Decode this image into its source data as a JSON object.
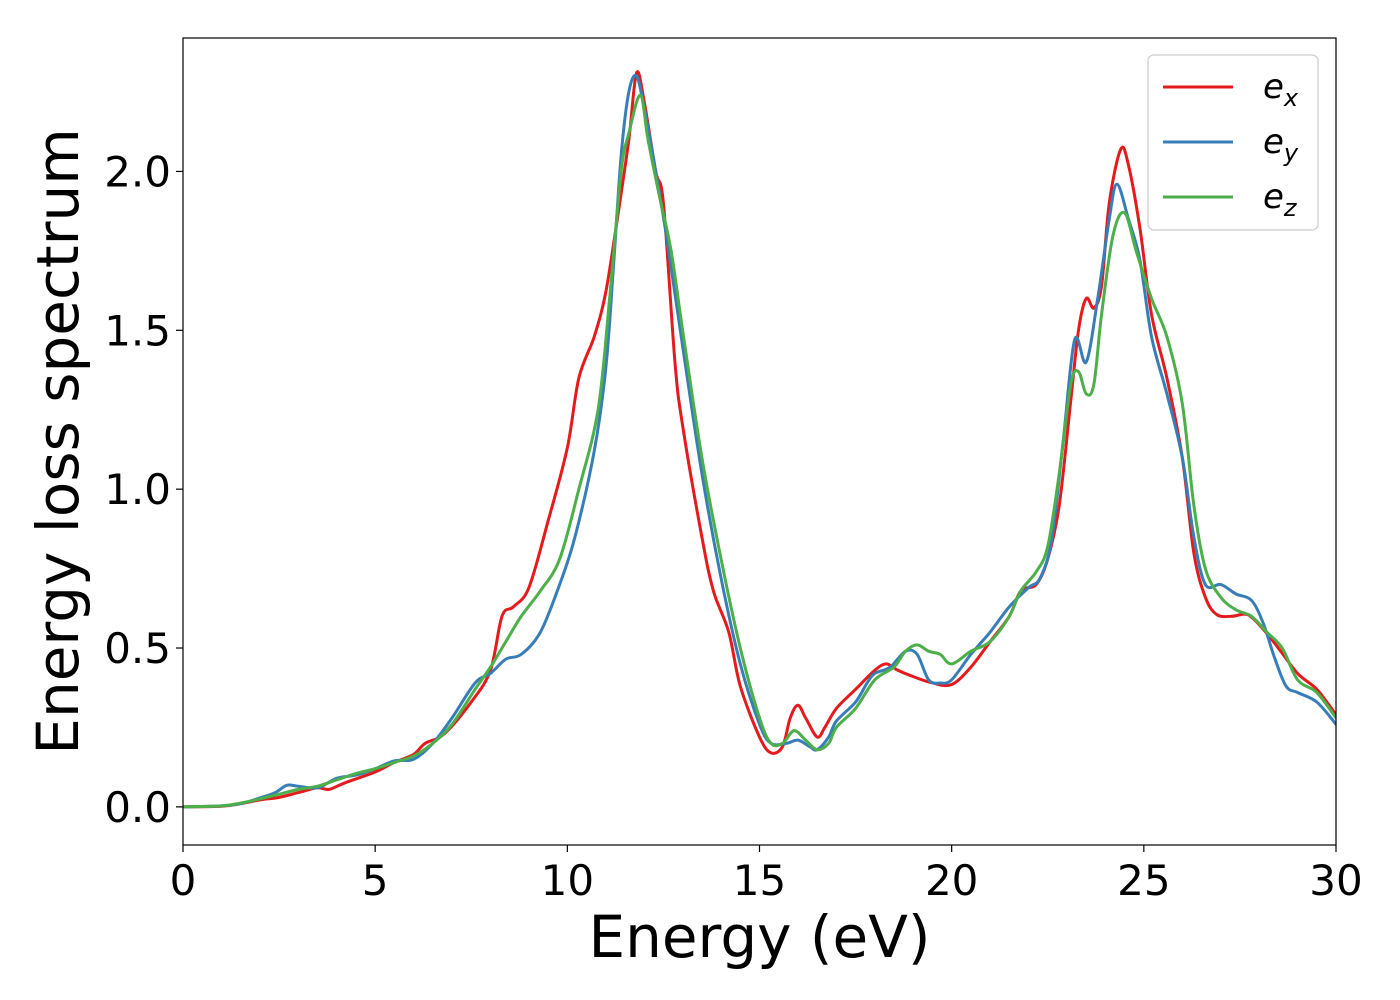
{
  "chart_data": {
    "type": "line",
    "title": "",
    "xlabel": "Energy (eV)",
    "ylabel": "Energy loss spectrum",
    "xlim": [
      0,
      30
    ],
    "ylim": [
      -0.12,
      2.42
    ],
    "x_ticks": [
      0,
      5,
      10,
      15,
      20,
      25,
      30
    ],
    "x_tick_labels": [
      "0",
      "5",
      "10",
      "15",
      "20",
      "25",
      "30"
    ],
    "y_ticks": [
      0.0,
      0.5,
      1.0,
      1.5,
      2.0
    ],
    "y_tick_labels": [
      "0.0",
      "0.5",
      "1.0",
      "1.5",
      "2.0"
    ],
    "grid": false,
    "legend_position": "top-right",
    "series": [
      {
        "name": "e",
        "subscript": "x",
        "color": "#e41a1c",
        "points": [
          [
            0,
            0
          ],
          [
            1,
            0.002
          ],
          [
            1.5,
            0.01
          ],
          [
            2,
            0.022
          ],
          [
            2.5,
            0.03
          ],
          [
            3,
            0.045
          ],
          [
            3.5,
            0.06
          ],
          [
            3.8,
            0.055
          ],
          [
            4.2,
            0.075
          ],
          [
            5,
            0.11
          ],
          [
            5.5,
            0.14
          ],
          [
            6,
            0.165
          ],
          [
            6.3,
            0.2
          ],
          [
            6.8,
            0.23
          ],
          [
            7.5,
            0.33
          ],
          [
            8,
            0.43
          ],
          [
            8.3,
            0.6
          ],
          [
            8.6,
            0.63
          ],
          [
            9,
            0.69
          ],
          [
            9.5,
            0.9
          ],
          [
            10,
            1.13
          ],
          [
            10.3,
            1.35
          ],
          [
            10.7,
            1.48
          ],
          [
            11,
            1.62
          ],
          [
            11.3,
            1.85
          ],
          [
            11.6,
            2.1
          ],
          [
            11.8,
            2.31
          ],
          [
            12,
            2.22
          ],
          [
            12.3,
            2.0
          ],
          [
            12.5,
            1.9
          ],
          [
            12.8,
            1.4
          ],
          [
            13,
            1.2
          ],
          [
            13.5,
            0.85
          ],
          [
            13.8,
            0.68
          ],
          [
            14.2,
            0.55
          ],
          [
            14.5,
            0.38
          ],
          [
            15,
            0.22
          ],
          [
            15.3,
            0.17
          ],
          [
            15.6,
            0.19
          ],
          [
            15.8,
            0.28
          ],
          [
            16,
            0.32
          ],
          [
            16.2,
            0.28
          ],
          [
            16.5,
            0.22
          ],
          [
            16.7,
            0.25
          ],
          [
            17,
            0.31
          ],
          [
            17.5,
            0.37
          ],
          [
            18,
            0.43
          ],
          [
            18.3,
            0.45
          ],
          [
            18.6,
            0.43
          ],
          [
            19,
            0.41
          ],
          [
            19.5,
            0.39
          ],
          [
            20,
            0.385
          ],
          [
            20.5,
            0.44
          ],
          [
            21,
            0.52
          ],
          [
            21.5,
            0.6
          ],
          [
            21.8,
            0.68
          ],
          [
            22.2,
            0.7
          ],
          [
            22.5,
            0.78
          ],
          [
            22.8,
            0.95
          ],
          [
            23.1,
            1.28
          ],
          [
            23.3,
            1.5
          ],
          [
            23.5,
            1.6
          ],
          [
            23.7,
            1.57
          ],
          [
            23.9,
            1.64
          ],
          [
            24.1,
            1.9
          ],
          [
            24.4,
            2.07
          ],
          [
            24.6,
            2.02
          ],
          [
            24.9,
            1.82
          ],
          [
            25.2,
            1.55
          ],
          [
            25.6,
            1.35
          ],
          [
            26,
            1.1
          ],
          [
            26.3,
            0.8
          ],
          [
            26.6,
            0.66
          ],
          [
            26.9,
            0.605
          ],
          [
            27.3,
            0.6
          ],
          [
            27.7,
            0.605
          ],
          [
            28.1,
            0.56
          ],
          [
            28.5,
            0.5
          ],
          [
            29,
            0.42
          ],
          [
            29.5,
            0.37
          ],
          [
            30,
            0.29
          ]
        ]
      },
      {
        "name": "e",
        "subscript": "y",
        "color": "#377eb8",
        "points": [
          [
            0,
            0
          ],
          [
            1,
            0.003
          ],
          [
            1.5,
            0.01
          ],
          [
            2,
            0.028
          ],
          [
            2.4,
            0.045
          ],
          [
            2.7,
            0.068
          ],
          [
            3,
            0.065
          ],
          [
            3.5,
            0.06
          ],
          [
            4,
            0.09
          ],
          [
            4.5,
            0.1
          ],
          [
            5,
            0.12
          ],
          [
            5.5,
            0.145
          ],
          [
            6,
            0.15
          ],
          [
            6.5,
            0.2
          ],
          [
            7,
            0.28
          ],
          [
            7.6,
            0.39
          ],
          [
            8,
            0.42
          ],
          [
            8.4,
            0.465
          ],
          [
            8.8,
            0.48
          ],
          [
            9.3,
            0.55
          ],
          [
            9.8,
            0.7
          ],
          [
            10.2,
            0.85
          ],
          [
            10.7,
            1.12
          ],
          [
            11,
            1.38
          ],
          [
            11.2,
            1.7
          ],
          [
            11.4,
            2.05
          ],
          [
            11.6,
            2.25
          ],
          [
            11.8,
            2.3
          ],
          [
            12,
            2.2
          ],
          [
            12.3,
            2.0
          ],
          [
            12.6,
            1.78
          ],
          [
            13,
            1.45
          ],
          [
            13.5,
            1.05
          ],
          [
            14,
            0.72
          ],
          [
            14.5,
            0.45
          ],
          [
            15,
            0.26
          ],
          [
            15.3,
            0.2
          ],
          [
            15.7,
            0.2
          ],
          [
            16,
            0.21
          ],
          [
            16.3,
            0.19
          ],
          [
            16.5,
            0.18
          ],
          [
            16.8,
            0.22
          ],
          [
            17,
            0.27
          ],
          [
            17.5,
            0.33
          ],
          [
            17.8,
            0.39
          ],
          [
            18,
            0.42
          ],
          [
            18.4,
            0.44
          ],
          [
            18.8,
            0.49
          ],
          [
            19.1,
            0.48
          ],
          [
            19.4,
            0.4
          ],
          [
            19.7,
            0.39
          ],
          [
            20,
            0.4
          ],
          [
            20.5,
            0.48
          ],
          [
            21,
            0.55
          ],
          [
            21.5,
            0.63
          ],
          [
            22,
            0.69
          ],
          [
            22.3,
            0.72
          ],
          [
            22.6,
            0.84
          ],
          [
            22.9,
            1.15
          ],
          [
            23.2,
            1.47
          ],
          [
            23.5,
            1.4
          ],
          [
            23.8,
            1.6
          ],
          [
            24.1,
            1.85
          ],
          [
            24.3,
            1.96
          ],
          [
            24.6,
            1.85
          ],
          [
            24.9,
            1.72
          ],
          [
            25.2,
            1.48
          ],
          [
            25.6,
            1.3
          ],
          [
            26,
            1.1
          ],
          [
            26.3,
            0.85
          ],
          [
            26.6,
            0.7
          ],
          [
            27,
            0.7
          ],
          [
            27.4,
            0.67
          ],
          [
            27.8,
            0.65
          ],
          [
            28.1,
            0.58
          ],
          [
            28.4,
            0.47
          ],
          [
            28.7,
            0.38
          ],
          [
            29,
            0.36
          ],
          [
            29.5,
            0.33
          ],
          [
            30,
            0.26
          ]
        ]
      },
      {
        "name": "e",
        "subscript": "z",
        "color": "#4daf4a",
        "points": [
          [
            0,
            0
          ],
          [
            1,
            0.003
          ],
          [
            1.5,
            0.012
          ],
          [
            2,
            0.025
          ],
          [
            2.5,
            0.04
          ],
          [
            3,
            0.055
          ],
          [
            3.5,
            0.065
          ],
          [
            4,
            0.085
          ],
          [
            4.5,
            0.105
          ],
          [
            5,
            0.12
          ],
          [
            5.5,
            0.14
          ],
          [
            6,
            0.16
          ],
          [
            6.5,
            0.2
          ],
          [
            7,
            0.26
          ],
          [
            7.6,
            0.37
          ],
          [
            8,
            0.44
          ],
          [
            8.4,
            0.52
          ],
          [
            8.8,
            0.6
          ],
          [
            9.3,
            0.68
          ],
          [
            9.8,
            0.78
          ],
          [
            10.3,
            1.0
          ],
          [
            10.8,
            1.25
          ],
          [
            11.1,
            1.6
          ],
          [
            11.4,
            2.0
          ],
          [
            11.6,
            2.12
          ],
          [
            11.9,
            2.24
          ],
          [
            12.1,
            2.1
          ],
          [
            12.4,
            1.92
          ],
          [
            12.7,
            1.75
          ],
          [
            13,
            1.5
          ],
          [
            13.5,
            1.1
          ],
          [
            14,
            0.78
          ],
          [
            14.5,
            0.5
          ],
          [
            15,
            0.28
          ],
          [
            15.3,
            0.2
          ],
          [
            15.6,
            0.2
          ],
          [
            15.9,
            0.24
          ],
          [
            16.2,
            0.21
          ],
          [
            16.5,
            0.18
          ],
          [
            16.8,
            0.2
          ],
          [
            17,
            0.25
          ],
          [
            17.5,
            0.31
          ],
          [
            18,
            0.4
          ],
          [
            18.5,
            0.44
          ],
          [
            18.8,
            0.49
          ],
          [
            19.1,
            0.51
          ],
          [
            19.4,
            0.49
          ],
          [
            19.7,
            0.48
          ],
          [
            20,
            0.45
          ],
          [
            20.5,
            0.49
          ],
          [
            21,
            0.52
          ],
          [
            21.5,
            0.6
          ],
          [
            21.8,
            0.68
          ],
          [
            22.2,
            0.74
          ],
          [
            22.5,
            0.82
          ],
          [
            22.8,
            1.05
          ],
          [
            23.1,
            1.33
          ],
          [
            23.3,
            1.37
          ],
          [
            23.5,
            1.3
          ],
          [
            23.7,
            1.33
          ],
          [
            23.9,
            1.55
          ],
          [
            24.2,
            1.8
          ],
          [
            24.5,
            1.87
          ],
          [
            24.8,
            1.75
          ],
          [
            25.2,
            1.6
          ],
          [
            25.6,
            1.48
          ],
          [
            26,
            1.27
          ],
          [
            26.3,
            0.95
          ],
          [
            26.6,
            0.75
          ],
          [
            27,
            0.66
          ],
          [
            27.4,
            0.62
          ],
          [
            27.8,
            0.6
          ],
          [
            28.2,
            0.55
          ],
          [
            28.6,
            0.5
          ],
          [
            29,
            0.4
          ],
          [
            29.5,
            0.36
          ],
          [
            30,
            0.28
          ]
        ]
      }
    ]
  }
}
